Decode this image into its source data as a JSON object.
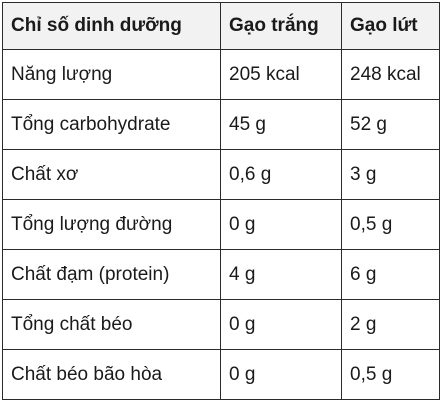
{
  "table": {
    "headers": [
      "Chỉ số dinh dưỡng",
      "Gạo trắng",
      "Gạo lứt"
    ],
    "rows": [
      [
        "Năng lượng",
        "205 kcal",
        "248 kcal"
      ],
      [
        "Tổng carbohydrate",
        "45 g",
        "52 g"
      ],
      [
        "Chất xơ",
        "0,6 g",
        "3 g"
      ],
      [
        "Tổng lượng đường",
        "0 g",
        "0,5 g"
      ],
      [
        "Chất đạm (protein)",
        "4 g",
        "6 g"
      ],
      [
        "Tổng chất béo",
        "0 g",
        "2 g"
      ],
      [
        "Chất béo bão hòa",
        "0 g",
        "0,5 g"
      ]
    ]
  }
}
